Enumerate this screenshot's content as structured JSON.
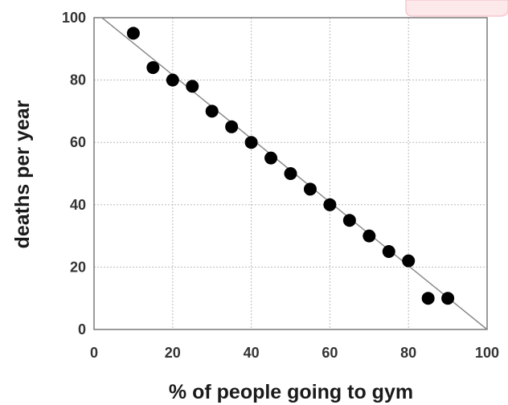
{
  "chart_data": {
    "type": "scatter",
    "title": "",
    "xlabel": "% of people going to gym",
    "ylabel": "deaths per year",
    "xlim": [
      0,
      100
    ],
    "ylim": [
      0,
      100
    ],
    "xticks": [
      0,
      20,
      40,
      60,
      80,
      100
    ],
    "yticks": [
      0,
      20,
      40,
      60,
      80,
      100
    ],
    "x_tick_labels": [
      "0",
      "20",
      "40",
      "60",
      "80",
      "100"
    ],
    "y_tick_labels": [
      "0",
      "20",
      "40",
      "60",
      "80",
      "100"
    ],
    "grid": true,
    "legend": "none",
    "series": [
      {
        "points": [
          {
            "x": 10,
            "y": 95
          },
          {
            "x": 15,
            "y": 84
          },
          {
            "x": 20,
            "y": 80
          },
          {
            "x": 25,
            "y": 78
          },
          {
            "x": 30,
            "y": 70
          },
          {
            "x": 35,
            "y": 65
          },
          {
            "x": 40,
            "y": 60
          },
          {
            "x": 45,
            "y": 55
          },
          {
            "x": 50,
            "y": 50
          },
          {
            "x": 55,
            "y": 45
          },
          {
            "x": 60,
            "y": 40
          },
          {
            "x": 65,
            "y": 35
          },
          {
            "x": 70,
            "y": 30
          },
          {
            "x": 75,
            "y": 25
          },
          {
            "x": 80,
            "y": 22
          },
          {
            "x": 85,
            "y": 10
          },
          {
            "x": 90,
            "y": 10
          }
        ]
      }
    ],
    "trend_line": {
      "from": {
        "x": 2,
        "y": 100
      },
      "to": {
        "x": 100,
        "y": 0
      }
    },
    "colors": {
      "points": "#000000",
      "trend": "#8a8a8a",
      "grid": "#b9b9b9",
      "frame": "#7a7a7a"
    }
  }
}
